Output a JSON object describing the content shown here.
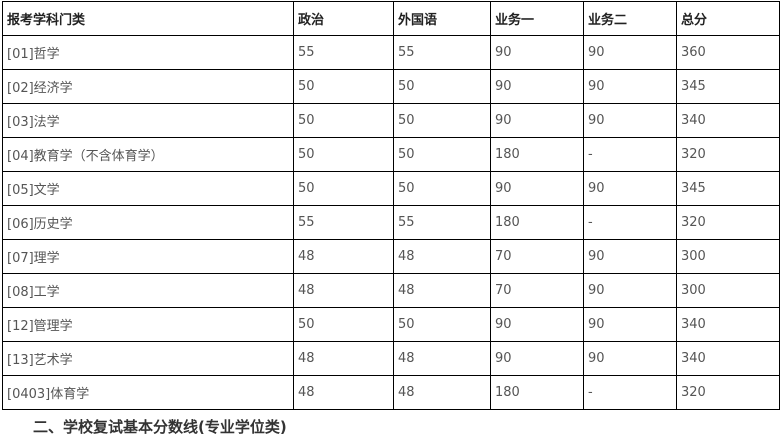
{
  "table": {
    "headers": [
      "报考学科门类",
      "政治",
      "外国语",
      "业务一",
      "业务二",
      "总分"
    ],
    "rows": [
      [
        "[01]哲学",
        "55",
        "55",
        "90",
        "90",
        "360"
      ],
      [
        "[02]经济学",
        "50",
        "50",
        "90",
        "90",
        "345"
      ],
      [
        "[03]法学",
        "50",
        "50",
        "90",
        "90",
        "340"
      ],
      [
        "[04]教育学（不含体育学）",
        "50",
        "50",
        "180",
        "-",
        "320"
      ],
      [
        "[05]文学",
        "50",
        "50",
        "90",
        "90",
        "345"
      ],
      [
        "[06]历史学",
        "55",
        "55",
        "180",
        "-",
        "320"
      ],
      [
        "[07]理学",
        "48",
        "48",
        "70",
        "90",
        "300"
      ],
      [
        "[08]工学",
        "48",
        "48",
        "70",
        "90",
        "300"
      ],
      [
        "[12]管理学",
        "50",
        "50",
        "90",
        "90",
        "340"
      ],
      [
        "[13]艺术学",
        "48",
        "48",
        "90",
        "90",
        "340"
      ],
      [
        "[0403]体育学",
        "48",
        "48",
        "180",
        "-",
        "320"
      ]
    ]
  },
  "section_heading": "二、学校复试基本分数线(专业学位类)"
}
